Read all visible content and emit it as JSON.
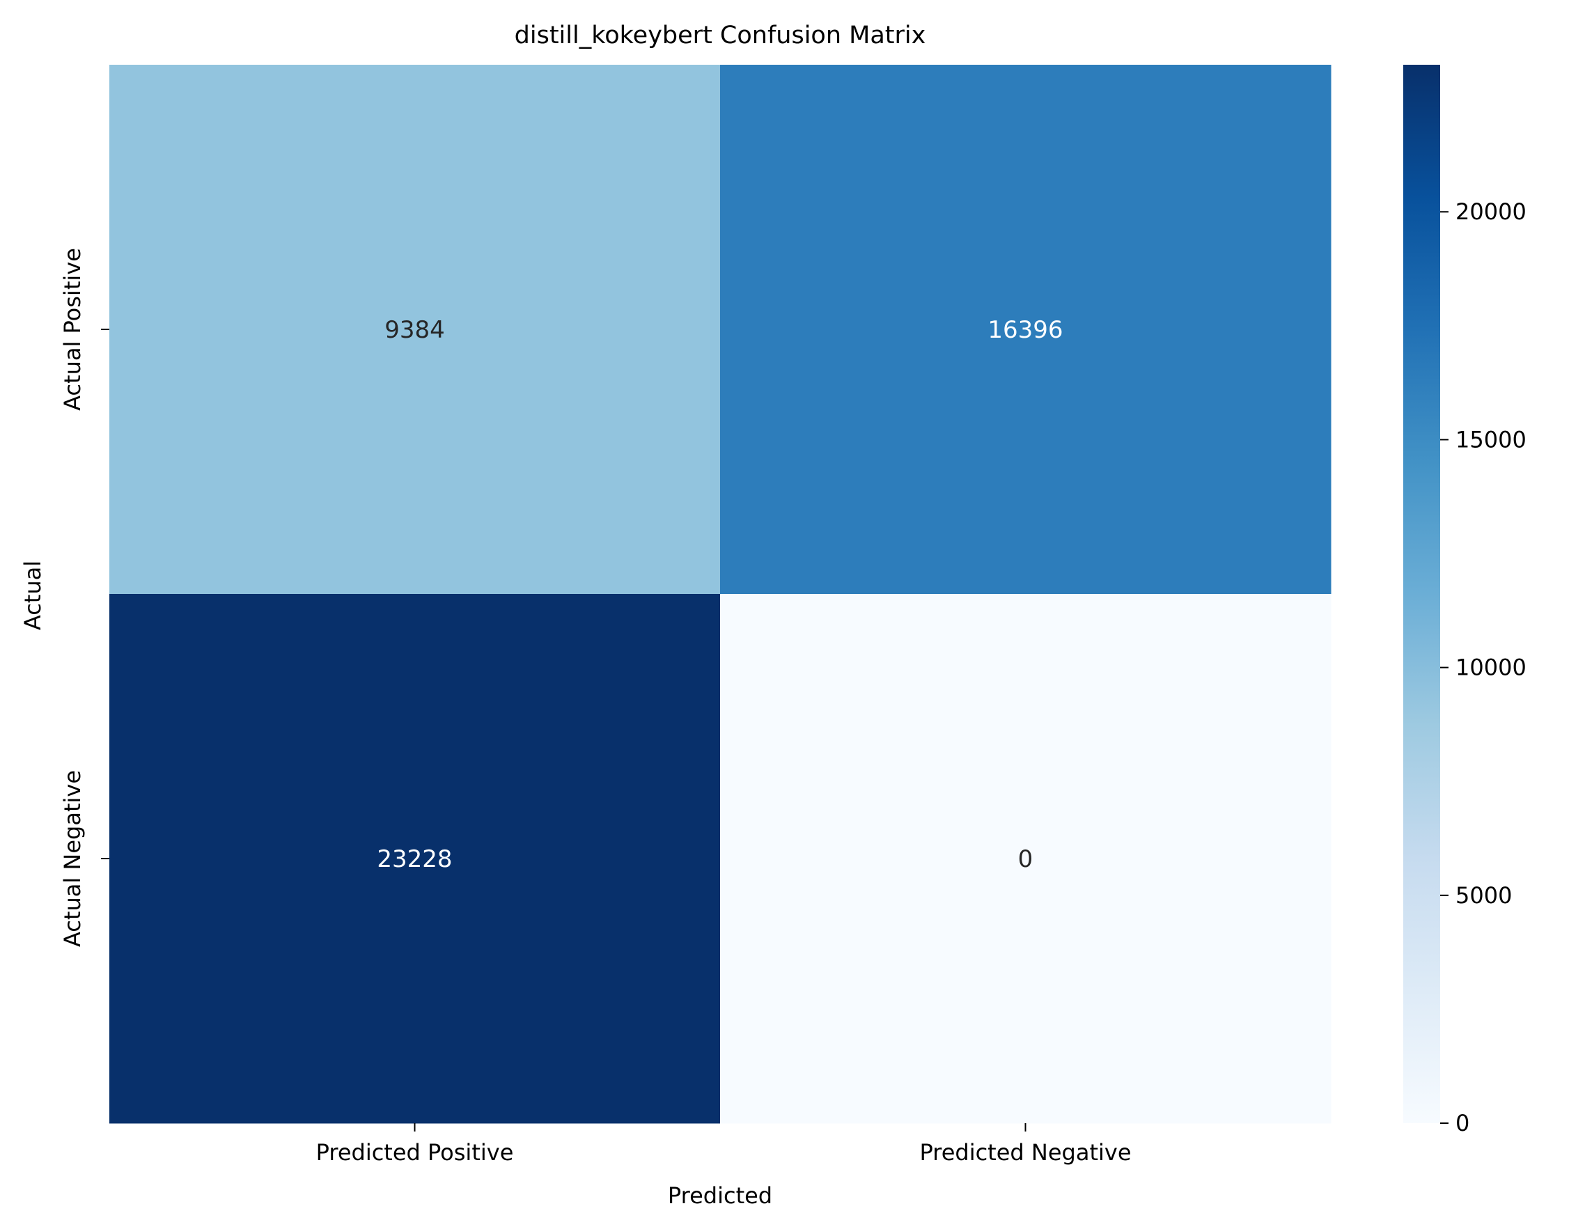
{
  "chart_data": {
    "type": "heatmap",
    "title": "distill_kokeybert Confusion Matrix",
    "xlabel": "Predicted",
    "ylabel": "Actual",
    "x_categories": [
      "Predicted Positive",
      "Predicted Negative"
    ],
    "y_categories": [
      "Actual Positive",
      "Actual Negative"
    ],
    "values": [
      [
        9384,
        16396
      ],
      [
        23228,
        0
      ]
    ],
    "colorbar": {
      "range": [
        0,
        23228
      ],
      "ticks": [
        0,
        5000,
        10000,
        15000,
        20000
      ],
      "tick_labels": [
        "0",
        "5000",
        "10000",
        "15000",
        "20000"
      ],
      "colormap": "Blues"
    },
    "colors": {
      "blues_low": "#f7fbff",
      "blues_high": "#08306b",
      "text_dark": "#262626",
      "text_light": "#ffffff"
    }
  }
}
